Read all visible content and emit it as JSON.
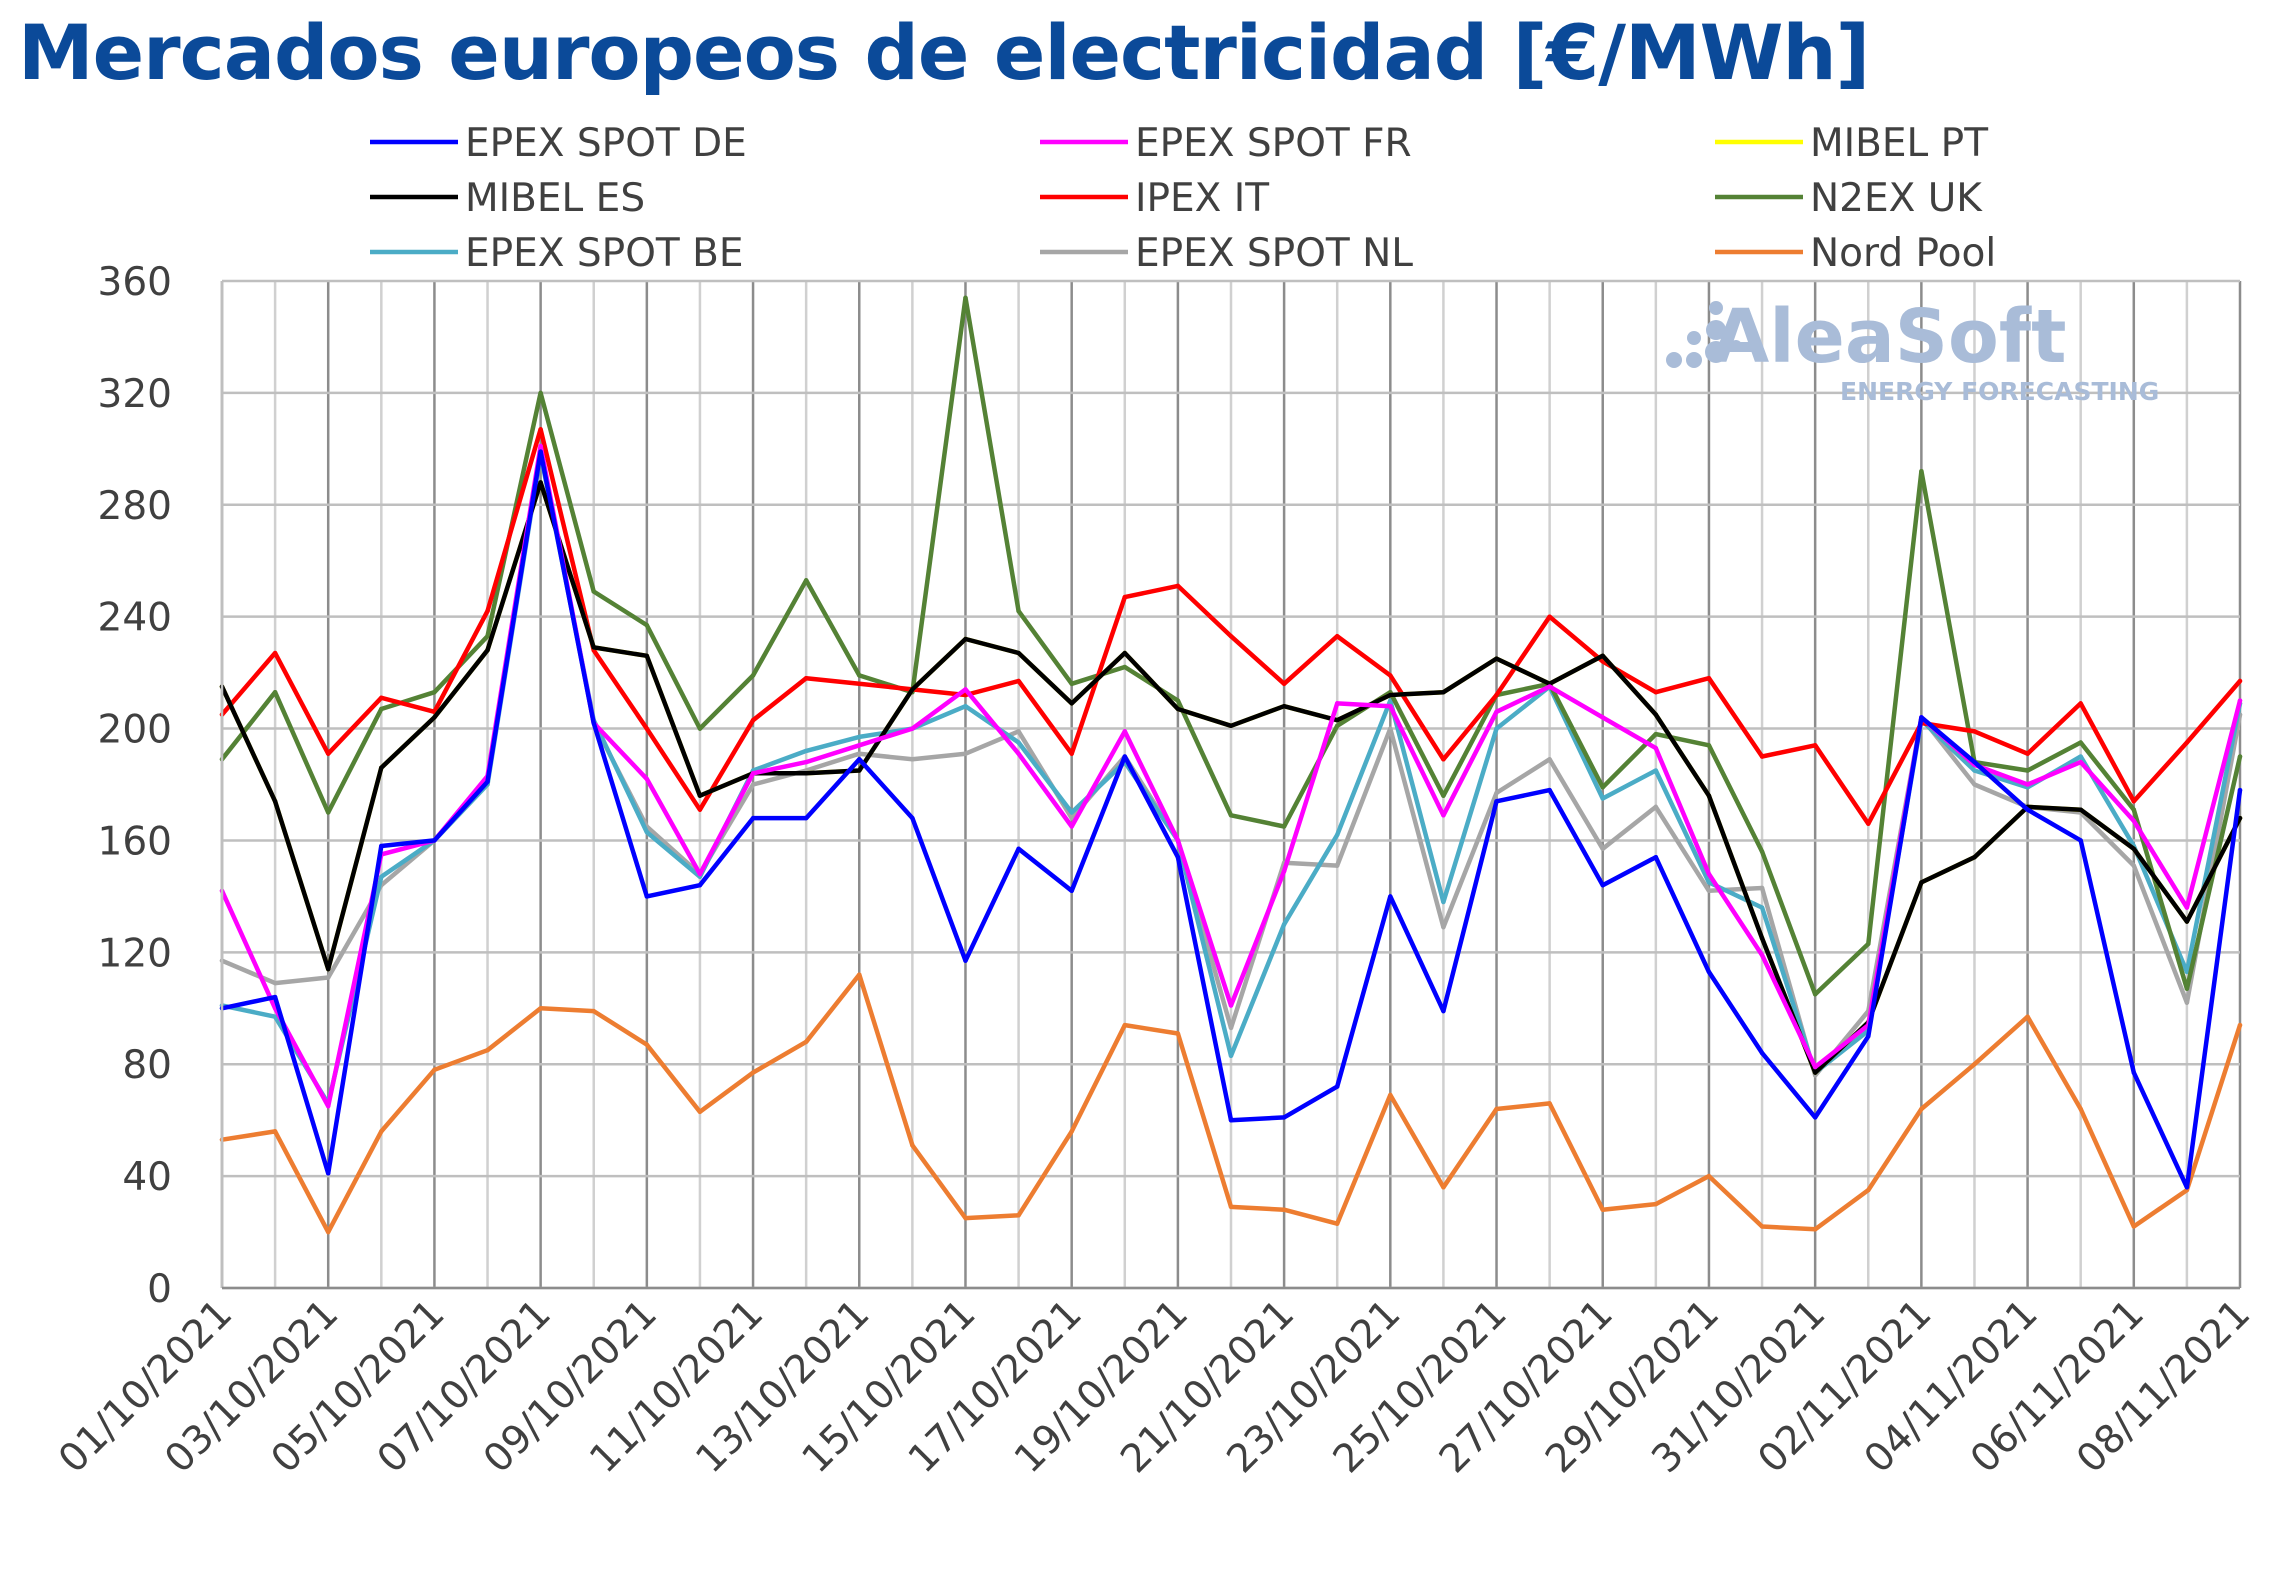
{
  "chart_data": {
    "type": "line",
    "title": "Mercados europeos de electricidad [€/MWh]",
    "title_color": "#0b4a99",
    "ylim": [
      0,
      360
    ],
    "y_ticks": [
      0,
      40,
      80,
      120,
      160,
      200,
      240,
      280,
      320,
      360
    ],
    "grid": true,
    "legend_position": "top",
    "x": [
      "01/10/2021",
      "02/10/2021",
      "03/10/2021",
      "04/10/2021",
      "05/10/2021",
      "06/10/2021",
      "07/10/2021",
      "08/10/2021",
      "09/10/2021",
      "10/10/2021",
      "11/10/2021",
      "12/10/2021",
      "13/10/2021",
      "14/10/2021",
      "15/10/2021",
      "16/10/2021",
      "17/10/2021",
      "18/10/2021",
      "19/10/2021",
      "20/10/2021",
      "21/10/2021",
      "22/10/2021",
      "23/10/2021",
      "24/10/2021",
      "25/10/2021",
      "26/10/2021",
      "27/10/2021",
      "28/10/2021",
      "29/10/2021",
      "30/10/2021",
      "31/10/2021",
      "01/11/2021",
      "02/11/2021",
      "03/11/2021",
      "04/11/2021",
      "05/11/2021",
      "06/11/2021",
      "07/11/2021",
      "08/11/2021"
    ],
    "x_tick_labels": [
      "01/10/2021",
      "03/10/2021",
      "05/10/2021",
      "07/10/2021",
      "09/10/2021",
      "11/10/2021",
      "13/10/2021",
      "15/10/2021",
      "17/10/2021",
      "19/10/2021",
      "21/10/2021",
      "23/10/2021",
      "25/10/2021",
      "27/10/2021",
      "29/10/2021",
      "31/10/2021",
      "02/11/2021",
      "04/11/2021",
      "06/11/2021",
      "08/11/2021"
    ],
    "series": [
      {
        "name": "Nord Pool",
        "color": "#ed7d31",
        "values": [
          53,
          56,
          20,
          56,
          78,
          85,
          100,
          99,
          87,
          63,
          77,
          88,
          112,
          51,
          25,
          26,
          56,
          94,
          91,
          29,
          28,
          23,
          69,
          36,
          64,
          66,
          28,
          30,
          40,
          22,
          21,
          35,
          64,
          80,
          97,
          64,
          22,
          35,
          94
        ]
      },
      {
        "name": "EPEX SPOT NL",
        "color": "#a6a6a6",
        "values": [
          117,
          109,
          111,
          144,
          160,
          182,
          300,
          202,
          165,
          148,
          180,
          185,
          191,
          189,
          191,
          199,
          168,
          190,
          160,
          93,
          152,
          151,
          200,
          129,
          177,
          189,
          157,
          172,
          142,
          143,
          76,
          99,
          204,
          180,
          172,
          170,
          151,
          102,
          205
        ]
      },
      {
        "name": "EPEX SPOT BE",
        "color": "#4bacc6",
        "values": [
          101,
          97,
          66,
          147,
          160,
          180,
          298,
          203,
          163,
          147,
          185,
          192,
          197,
          200,
          208,
          195,
          170,
          188,
          160,
          83,
          130,
          162,
          210,
          138,
          200,
          215,
          175,
          185,
          145,
          136,
          77,
          92,
          203,
          185,
          179,
          190,
          158,
          113,
          209
        ]
      },
      {
        "name": "N2EX UK",
        "color": "#548235",
        "values": [
          189,
          213,
          170,
          207,
          213,
          233,
          320,
          249,
          237,
          200,
          219,
          253,
          219,
          213,
          354,
          242,
          216,
          222,
          210,
          169,
          165,
          201,
          213,
          176,
          212,
          216,
          179,
          198,
          194,
          156,
          105,
          123,
          292,
          188,
          185,
          195,
          171,
          107,
          190
        ]
      },
      {
        "name": "IPEX IT",
        "color": "#ff0000",
        "values": [
          205,
          227,
          191,
          211,
          206,
          242,
          307,
          228,
          200,
          171,
          203,
          218,
          216,
          214,
          212,
          217,
          191,
          247,
          251,
          233,
          216,
          233,
          219,
          189,
          212,
          240,
          224,
          213,
          218,
          190,
          194,
          166,
          202,
          199,
          191,
          209,
          174,
          195,
          217
        ]
      },
      {
        "name": "MIBEL PT",
        "color": "#ffff00",
        "values": [
          215,
          174,
          114,
          186,
          204,
          228,
          288,
          229,
          226,
          176,
          184,
          184,
          185,
          214,
          232,
          227,
          209,
          227,
          207,
          201,
          208,
          203,
          212,
          213,
          225,
          216,
          226,
          205,
          176,
          125,
          77,
          95,
          145,
          154,
          172,
          171,
          157,
          131,
          168
        ]
      },
      {
        "name": "MIBEL ES",
        "color": "#000000",
        "values": [
          215,
          174,
          114,
          186,
          204,
          228,
          288,
          229,
          226,
          176,
          184,
          184,
          185,
          214,
          232,
          227,
          209,
          227,
          207,
          201,
          208,
          203,
          212,
          213,
          225,
          216,
          226,
          205,
          176,
          125,
          77,
          95,
          145,
          154,
          172,
          171,
          157,
          131,
          168
        ]
      },
      {
        "name": "EPEX SPOT FR",
        "color": "#ff00ff",
        "values": [
          142,
          100,
          65,
          155,
          160,
          183,
          301,
          202,
          182,
          148,
          184,
          188,
          194,
          200,
          214,
          191,
          165,
          199,
          160,
          101,
          149,
          209,
          208,
          169,
          206,
          215,
          204,
          193,
          148,
          119,
          79,
          94,
          204,
          187,
          180,
          188,
          167,
          136,
          210
        ]
      },
      {
        "name": "EPEX SPOT DE",
        "color": "#0000ff",
        "values": [
          100,
          104,
          41,
          158,
          160,
          181,
          299,
          202,
          140,
          144,
          168,
          168,
          189,
          168,
          117,
          157,
          142,
          190,
          154,
          60,
          61,
          72,
          140,
          99,
          174,
          178,
          144,
          154,
          113,
          84,
          61,
          90,
          204,
          188,
          171,
          160,
          77,
          36,
          178
        ]
      }
    ],
    "legend": [
      {
        "name": "EPEX SPOT DE",
        "color": "#0000ff"
      },
      {
        "name": "EPEX SPOT FR",
        "color": "#ff00ff"
      },
      {
        "name": "MIBEL PT",
        "color": "#ffff00"
      },
      {
        "name": "MIBEL ES",
        "color": "#000000"
      },
      {
        "name": "IPEX IT",
        "color": "#ff0000"
      },
      {
        "name": "N2EX UK",
        "color": "#548235"
      },
      {
        "name": "EPEX SPOT BE",
        "color": "#4bacc6"
      },
      {
        "name": "EPEX SPOT NL",
        "color": "#a6a6a6"
      },
      {
        "name": "Nord Pool",
        "color": "#ed7d31"
      }
    ]
  },
  "watermark": {
    "name": "AleaSoft",
    "tagline": "ENERGY FORECASTING",
    "color": "#a9bcd8"
  }
}
